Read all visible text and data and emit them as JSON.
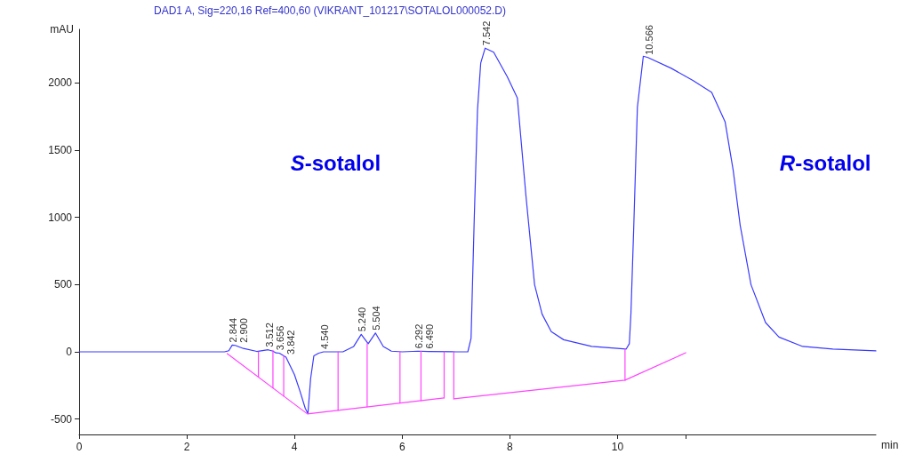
{
  "chart_data": {
    "type": "line",
    "subtitle": "DAD1 A, Sig=220,16 Ref=400,60 (VIKRANT_101217\\SOTALOL000052.D)",
    "xlabel": "min",
    "ylabel": "mAU",
    "xlim": [
      0,
      14.8
    ],
    "xticks": [
      0,
      2,
      4,
      6,
      8,
      10,
      {
        "value": 11.27,
        "label": null
      }
    ],
    "ylim": [
      -615,
      2400
    ],
    "yticks": [
      -500,
      0,
      500,
      1000,
      1500,
      2000
    ],
    "marker": "none",
    "annotations": [
      "S-sotalol",
      "R-sotalol",
      {
        "text": "2.844",
        "x": 2.844,
        "y": 50
      },
      {
        "text": "2.900",
        "x": 2.9,
        "y": 48
      },
      {
        "text": "3.512",
        "x": 3.512,
        "y": 15
      },
      {
        "text": "3.656",
        "x": 3.656,
        "y": -8
      },
      {
        "text": "3.842",
        "x": 3.842,
        "y": -40
      },
      {
        "text": "4.540",
        "x": 4.54,
        "y": 0
      },
      {
        "text": "5.240",
        "x": 5.24,
        "y": 130
      },
      {
        "text": "5.504",
        "x": 5.504,
        "y": 140
      },
      {
        "text": "6.292",
        "x": 6.292,
        "y": 5
      },
      {
        "text": "6.490",
        "x": 6.49,
        "y": 3
      },
      {
        "text": "7.542",
        "x": 7.542,
        "y": 2260
      },
      {
        "text": "10.566",
        "x": 10.566,
        "y": 2190
      }
    ],
    "series": [
      {
        "color": "#3a3aff",
        "x": [
          0,
          2.7,
          2.78,
          2.844,
          2.9,
          3.05,
          3.3,
          3.512,
          3.6,
          3.656,
          3.72,
          3.842,
          4.0,
          4.1,
          4.2,
          4.25,
          4.3,
          4.36,
          4.45,
          4.54,
          4.9,
          5.1,
          5.24,
          5.37,
          5.504,
          5.65,
          5.8,
          6.0,
          6.292,
          6.49,
          7.0,
          7.22,
          7.28,
          7.34,
          7.4,
          7.46,
          7.542,
          7.7,
          7.95,
          8.14,
          8.3,
          8.46,
          8.6,
          8.77,
          9.0,
          9.52,
          10.16,
          10.22,
          10.25,
          10.3,
          10.37,
          10.48,
          10.566,
          11.0,
          11.4,
          11.75,
          12.0,
          12.15,
          12.28,
          12.48,
          12.75,
          13.0,
          13.44,
          14.0,
          14.8
        ],
        "values": [
          0,
          0,
          8,
          50,
          48,
          25,
          3,
          15,
          5,
          -8,
          -10,
          -40,
          -170,
          -290,
          -420,
          -460,
          -200,
          -30,
          -10,
          0,
          0,
          40,
          130,
          60,
          140,
          40,
          5,
          0,
          5,
          3,
          0,
          0,
          100,
          1000,
          1800,
          2150,
          2260,
          2230,
          2050,
          1890,
          1160,
          500,
          280,
          150,
          90,
          40,
          20,
          60,
          284,
          900,
          1820,
          2200,
          2190,
          2110,
          2020,
          1930,
          1710,
          1350,
          940,
          500,
          218,
          110,
          40,
          20,
          7
        ]
      },
      {
        "color": "#ff44ff",
        "x": [
          2.75,
          4.24,
          6.78
        ],
        "values": [
          -13,
          -462,
          -343
        ]
      },
      {
        "color": "#ff44ff",
        "x": [
          6.96,
          10.14,
          11.27
        ],
        "values": [
          -350,
          -211,
          -7
        ]
      },
      {
        "color": "#ff44ff",
        "x": [
          3.33,
          3.33
        ],
        "values": [
          -188,
          0
        ]
      },
      {
        "color": "#ff44ff",
        "x": [
          3.6,
          3.6
        ],
        "values": [
          -269,
          10
        ]
      },
      {
        "color": "#ff44ff",
        "x": [
          3.8,
          3.8
        ],
        "values": [
          -329,
          -30
        ]
      },
      {
        "color": "#ff44ff",
        "x": [
          4.81,
          4.81
        ],
        "values": [
          -435,
          0
        ]
      },
      {
        "color": "#ff44ff",
        "x": [
          5.35,
          5.35
        ],
        "values": [
          -410,
          60
        ]
      },
      {
        "color": "#ff44ff",
        "x": [
          5.96,
          5.96
        ],
        "values": [
          -381,
          0
        ]
      },
      {
        "color": "#ff44ff",
        "x": [
          6.35,
          6.35
        ],
        "values": [
          -363,
          5
        ]
      },
      {
        "color": "#ff44ff",
        "x": [
          6.78,
          6.78
        ],
        "values": [
          -343,
          0
        ]
      },
      {
        "color": "#ff44ff",
        "x": [
          6.96,
          6.96
        ],
        "values": [
          -350,
          0
        ]
      },
      {
        "color": "#ff44ff",
        "x": [
          10.14,
          10.14
        ],
        "values": [
          -211,
          20
        ]
      }
    ]
  }
}
